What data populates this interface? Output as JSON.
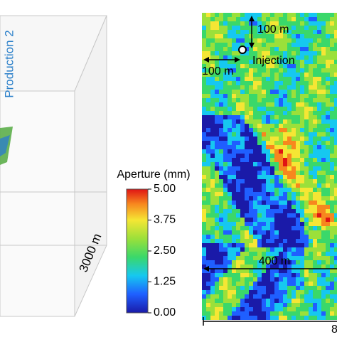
{
  "figure": {
    "left_panel": {
      "well_label": "Production 2",
      "depth_label": "3000 m"
    },
    "colorbar": {
      "title": "Aperture (mm)",
      "range": [
        0,
        5
      ],
      "ticks": [
        {
          "value": 0,
          "label": "0.00"
        },
        {
          "value": 1.25,
          "label": "1.25"
        },
        {
          "value": 2.5,
          "label": "2.50"
        },
        {
          "value": 3.75,
          "label": "3.75"
        },
        {
          "value": 5,
          "label": "5.00"
        }
      ]
    },
    "map": {
      "vertical_scale": "100 m",
      "horizontal_scale": "100 m",
      "injection_label": "Injection",
      "width_scale": "400 m",
      "full_width_label": "8"
    }
  }
}
